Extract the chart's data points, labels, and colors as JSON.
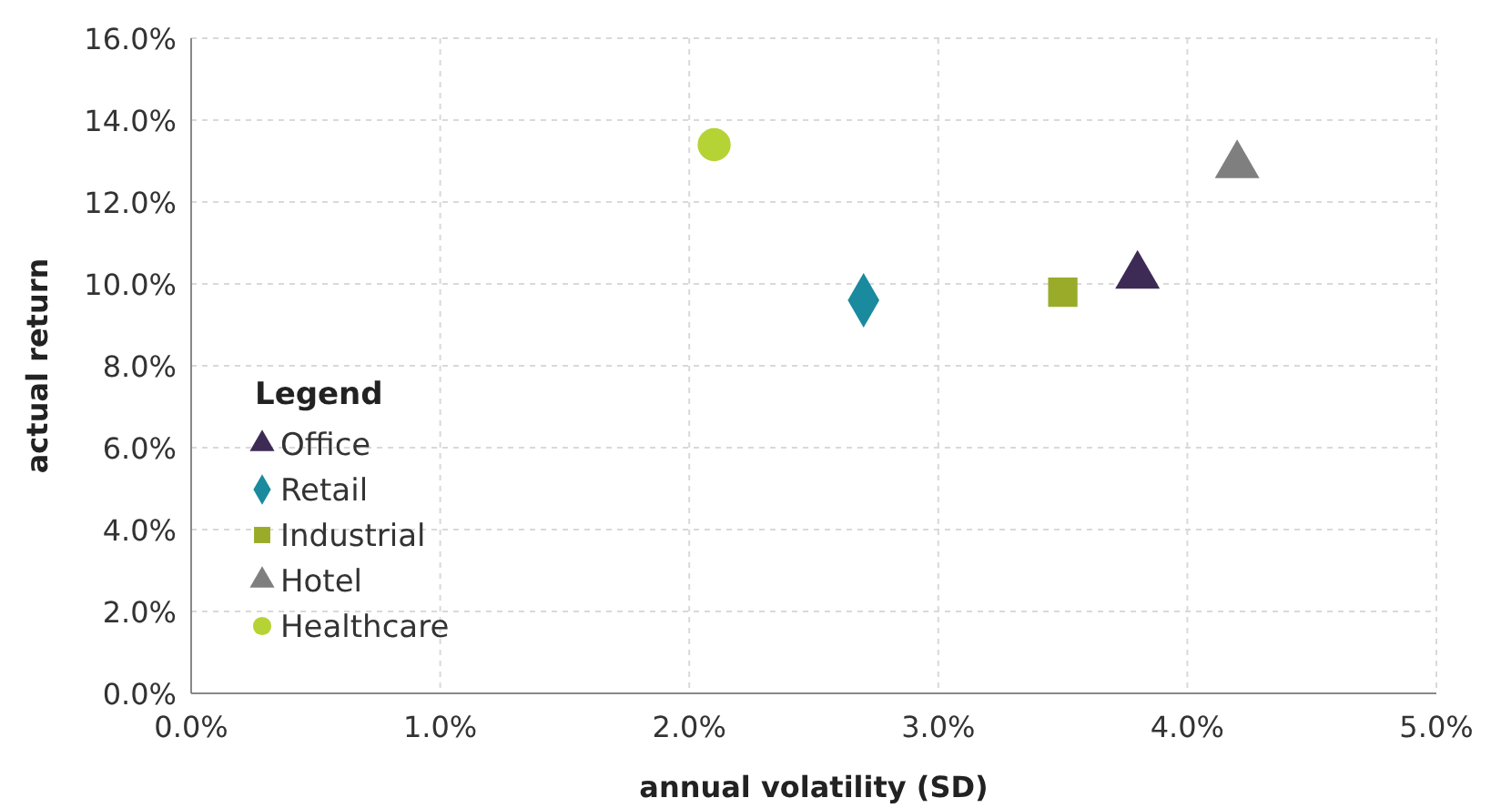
{
  "chart_data": {
    "type": "scatter",
    "xlabel": "annual volatility (SD)",
    "ylabel": "actual return",
    "legend_title": "Legend",
    "legend": "bottom left",
    "grid": true,
    "xlim": [
      0,
      5
    ],
    "xticks": [
      {
        "value": 0,
        "label": "0.0%"
      },
      {
        "value": 1,
        "label": "1.0%"
      },
      {
        "value": 2,
        "label": "2.0%"
      },
      {
        "value": 3,
        "label": "3.0%"
      },
      {
        "value": 4,
        "label": "4.0%"
      },
      {
        "value": 5,
        "label": "5.0%"
      }
    ],
    "ylim": [
      0,
      16
    ],
    "yticks": [
      {
        "value": 0,
        "label": "0.0%"
      },
      {
        "value": 2,
        "label": "2.0%"
      },
      {
        "value": 4,
        "label": "4.0%"
      },
      {
        "value": 6,
        "label": "6.0%"
      },
      {
        "value": 8,
        "label": "8.0%"
      },
      {
        "value": 10,
        "label": "10.0%"
      },
      {
        "value": 12,
        "label": "12.0%"
      },
      {
        "value": 14,
        "label": "14.0%"
      },
      {
        "value": 16,
        "label": "16.0%"
      }
    ],
    "series": [
      {
        "name": "Office",
        "color": "#3d2b56",
        "marker": "triangle",
        "x": [
          3.8
        ],
        "values": [
          10.2
        ]
      },
      {
        "name": "Retail",
        "color": "#1a8a9e",
        "marker": "diamond",
        "x": [
          2.7
        ],
        "values": [
          9.6
        ]
      },
      {
        "name": "Industrial",
        "color": "#9aab2a",
        "marker": "square",
        "x": [
          3.5
        ],
        "values": [
          9.8
        ]
      },
      {
        "name": "Hotel",
        "color": "#7f7f7f",
        "marker": "triangle",
        "x": [
          4.2
        ],
        "values": [
          12.9
        ]
      },
      {
        "name": "Healthcare",
        "color": "#b5d334",
        "marker": "circle",
        "x": [
          2.1
        ],
        "values": [
          13.4
        ]
      }
    ]
  }
}
